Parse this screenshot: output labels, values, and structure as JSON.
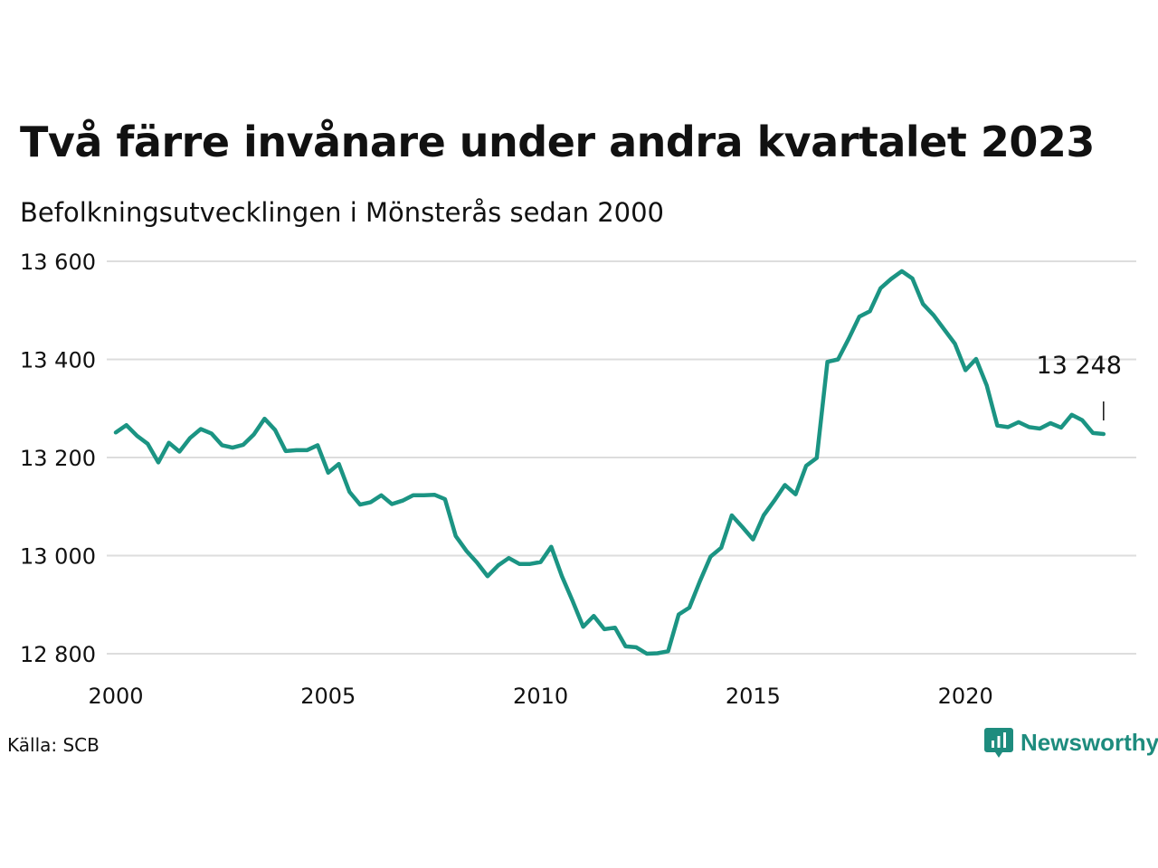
{
  "header": {
    "title": "Två färre invånare under andra kvartalet 2023",
    "subtitle": "Befolkningsutvecklingen i Mönsterås sedan 2000"
  },
  "footer": {
    "source": "Källa: SCB",
    "brand": "Newsworthy"
  },
  "colors": {
    "line": "#1b9483",
    "grid": "#dddddd",
    "brand": "#1e8c7e"
  },
  "chart_data": {
    "type": "line",
    "title": "Två färre invånare under andra kvartalet 2023",
    "subtitle": "Befolkningsutvecklingen i Mönsterås sedan 2000",
    "xlabel": "",
    "ylabel": "",
    "xlim": [
      2000,
      2024.2
    ],
    "ylim": [
      12800,
      13600
    ],
    "x_ticks": [
      2000,
      2005,
      2010,
      2015,
      2020
    ],
    "x_tick_labels": [
      "2000",
      "2005",
      "2010",
      "2015",
      "2020"
    ],
    "y_ticks": [
      12800,
      13000,
      13200,
      13400,
      13600
    ],
    "y_tick_labels": [
      "12 800",
      "13 000",
      "13 200",
      "13 400",
      "13 600"
    ],
    "grid": "horizontal",
    "last_value_label": "13 248",
    "series": [
      {
        "x": [
          2000.0,
          2000.25,
          2000.5,
          2000.75,
          2001.0,
          2001.25,
          2001.5,
          2001.75,
          2002.0,
          2002.25,
          2002.5,
          2002.75,
          2003.0,
          2003.25,
          2003.5,
          2003.75,
          2004.0,
          2004.25,
          2004.5,
          2004.75,
          2005.0,
          2005.25,
          2005.5,
          2005.75,
          2006.0,
          2006.25,
          2006.5,
          2006.75,
          2007.0,
          2007.25,
          2007.5,
          2007.75,
          2008.0,
          2008.25,
          2008.5,
          2008.75,
          2009.0,
          2009.25,
          2009.5,
          2009.75,
          2010.0,
          2010.25,
          2010.5,
          2010.75,
          2011.0,
          2011.25,
          2011.5,
          2011.75,
          2012.0,
          2012.25,
          2012.5,
          2012.75,
          2013.0,
          2013.25,
          2013.5,
          2013.75,
          2014.0,
          2014.25,
          2014.5,
          2014.75,
          2015.0,
          2015.25,
          2015.5,
          2015.75,
          2016.0,
          2016.25,
          2016.5,
          2016.75,
          2017.0,
          2017.25,
          2017.5,
          2017.75,
          2018.0,
          2018.25,
          2018.5,
          2018.75,
          2019.0,
          2019.25,
          2019.5,
          2019.75,
          2020.0,
          2020.25,
          2020.5,
          2020.75,
          2021.0,
          2021.25,
          2021.5,
          2021.75,
          2022.0,
          2022.25,
          2022.5,
          2022.75,
          2023.0,
          2023.25
        ],
        "values": [
          13251,
          13266,
          13244,
          13228,
          13190,
          13230,
          13212,
          13240,
          13258,
          13249,
          13225,
          13220,
          13226,
          13247,
          13279,
          13256,
          13213,
          13215,
          13215,
          13225,
          13169,
          13187,
          13130,
          13104,
          13109,
          13123,
          13105,
          13112,
          13123,
          13123,
          13124,
          13115,
          13040,
          13010,
          12986,
          12958,
          12980,
          12995,
          12983,
          12983,
          12987,
          13018,
          12958,
          12908,
          12855,
          12877,
          12850,
          12853,
          12815,
          12813,
          12800,
          12801,
          12805,
          12880,
          12894,
          12948,
          12998,
          13016,
          13082,
          13058,
          13033,
          13082,
          13112,
          13144,
          13125,
          13183,
          13199,
          13395,
          13400,
          13442,
          13487,
          13498,
          13545,
          13564,
          13580,
          13565,
          13513,
          13490,
          13461,
          13432,
          13378,
          13401,
          13347,
          13265,
          13262,
          13272,
          13262,
          13259,
          13270,
          13261,
          13287,
          13276,
          13250,
          13248
        ]
      }
    ]
  }
}
